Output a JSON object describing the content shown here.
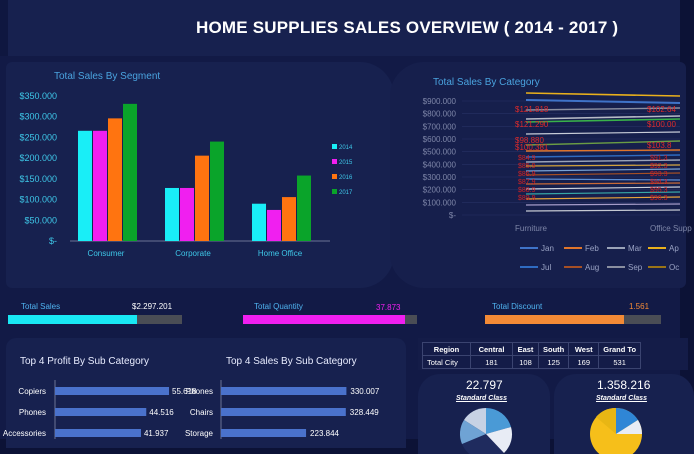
{
  "header": {
    "title": "HOME SUPPLIES SALES OVERVIEW ( 2014 - 2017 )"
  },
  "segment_chart": {
    "title": "Total Sales By Segment",
    "yticks": [
      "$350.000",
      "$300.000",
      "$250.000",
      "$200.000",
      "$150.000",
      "$100.000",
      "$50.000",
      "$-"
    ]
  },
  "category_chart": {
    "title": "Total Sales By Category",
    "yticks": [
      "$900.000",
      "$800.000",
      "$700.000",
      "$600.000",
      "$500.000",
      "$400.000",
      "$300.000",
      "$200.000",
      "$100.000",
      "$-"
    ],
    "xlabels": [
      "Furniture",
      "Office Supp"
    ],
    "data_labels_left": [
      "$121.818",
      "$121.290",
      "$98.880",
      "$100.381"
    ],
    "data_labels_right": [
      "$102.64",
      "$100.00",
      "$103.8"
    ],
    "legend_row1": [
      "Jan",
      "Feb",
      "Mar",
      "Ap"
    ],
    "legend_row2": [
      "Jul",
      "Aug",
      "Sep",
      "Oc"
    ]
  },
  "kpis": {
    "sales": {
      "label": "Total Sales",
      "value": "$2.297.201",
      "fill": 0.74
    },
    "quantity": {
      "label": "Total Quantity",
      "value": "37.873",
      "fill": 0.93
    },
    "discount": {
      "label": "Total Discount",
      "value": "1.561",
      "fill": 0.79
    }
  },
  "profit_panel": {
    "title": "Top 4 Profit By Sub Category",
    "rows": [
      {
        "label": "Copiers",
        "value": "55.618"
      },
      {
        "label": "Phones",
        "value": "44.516"
      },
      {
        "label": "Accessories",
        "value": "41.937"
      }
    ]
  },
  "sales_panel": {
    "title": "Top 4 Sales By Sub Category",
    "rows": [
      {
        "label": "Phones",
        "value": "330.007"
      },
      {
        "label": "Chairs",
        "value": "328.449"
      },
      {
        "label": "Storage",
        "value": "223.844"
      }
    ]
  },
  "region_table": {
    "headers": [
      "Region",
      "Central",
      "East",
      "South",
      "West",
      "Grand To"
    ],
    "row": [
      "Total City",
      "181",
      "108",
      "125",
      "169",
      "531"
    ]
  },
  "pie1": {
    "value": "22.797",
    "caption": "Standard Class"
  },
  "pie2": {
    "value": "1.358.216",
    "caption": "Standard Class"
  },
  "colors": {
    "y2014": "#19eef7",
    "y2015": "#f01ff0",
    "y2016": "#ff7410",
    "y2017": "#0aa42a",
    "kpi_sales": "#19e8f4",
    "kpi_quantity": "#f01ff0",
    "kpi_discount": "#f38a36",
    "hbar": "#4a72cc"
  },
  "chart_data": [
    {
      "type": "bar",
      "title": "Total Sales By Segment",
      "categories": [
        "Consumer",
        "Corporate",
        "Home Office"
      ],
      "series": [
        {
          "name": "2014",
          "values": [
            266000,
            128000,
            90000
          ]
        },
        {
          "name": "2015",
          "values": [
            266000,
            128000,
            75000
          ]
        },
        {
          "name": "2016",
          "values": [
            296000,
            206000,
            106000
          ]
        },
        {
          "name": "2017",
          "values": [
            331000,
            240000,
            158000
          ]
        }
      ],
      "ylim": [
        0,
        350000
      ],
      "legend": "right"
    },
    {
      "type": "bar",
      "title": "Top 4 Profit By Sub Category",
      "categories": [
        "Copiers",
        "Phones",
        "Accessories"
      ],
      "values": [
        55618,
        44516,
        41937
      ]
    },
    {
      "type": "bar",
      "title": "Top 4 Sales By Sub Category",
      "categories": [
        "Phones",
        "Chairs",
        "Storage"
      ],
      "values": [
        330007,
        328449,
        223844
      ]
    }
  ]
}
